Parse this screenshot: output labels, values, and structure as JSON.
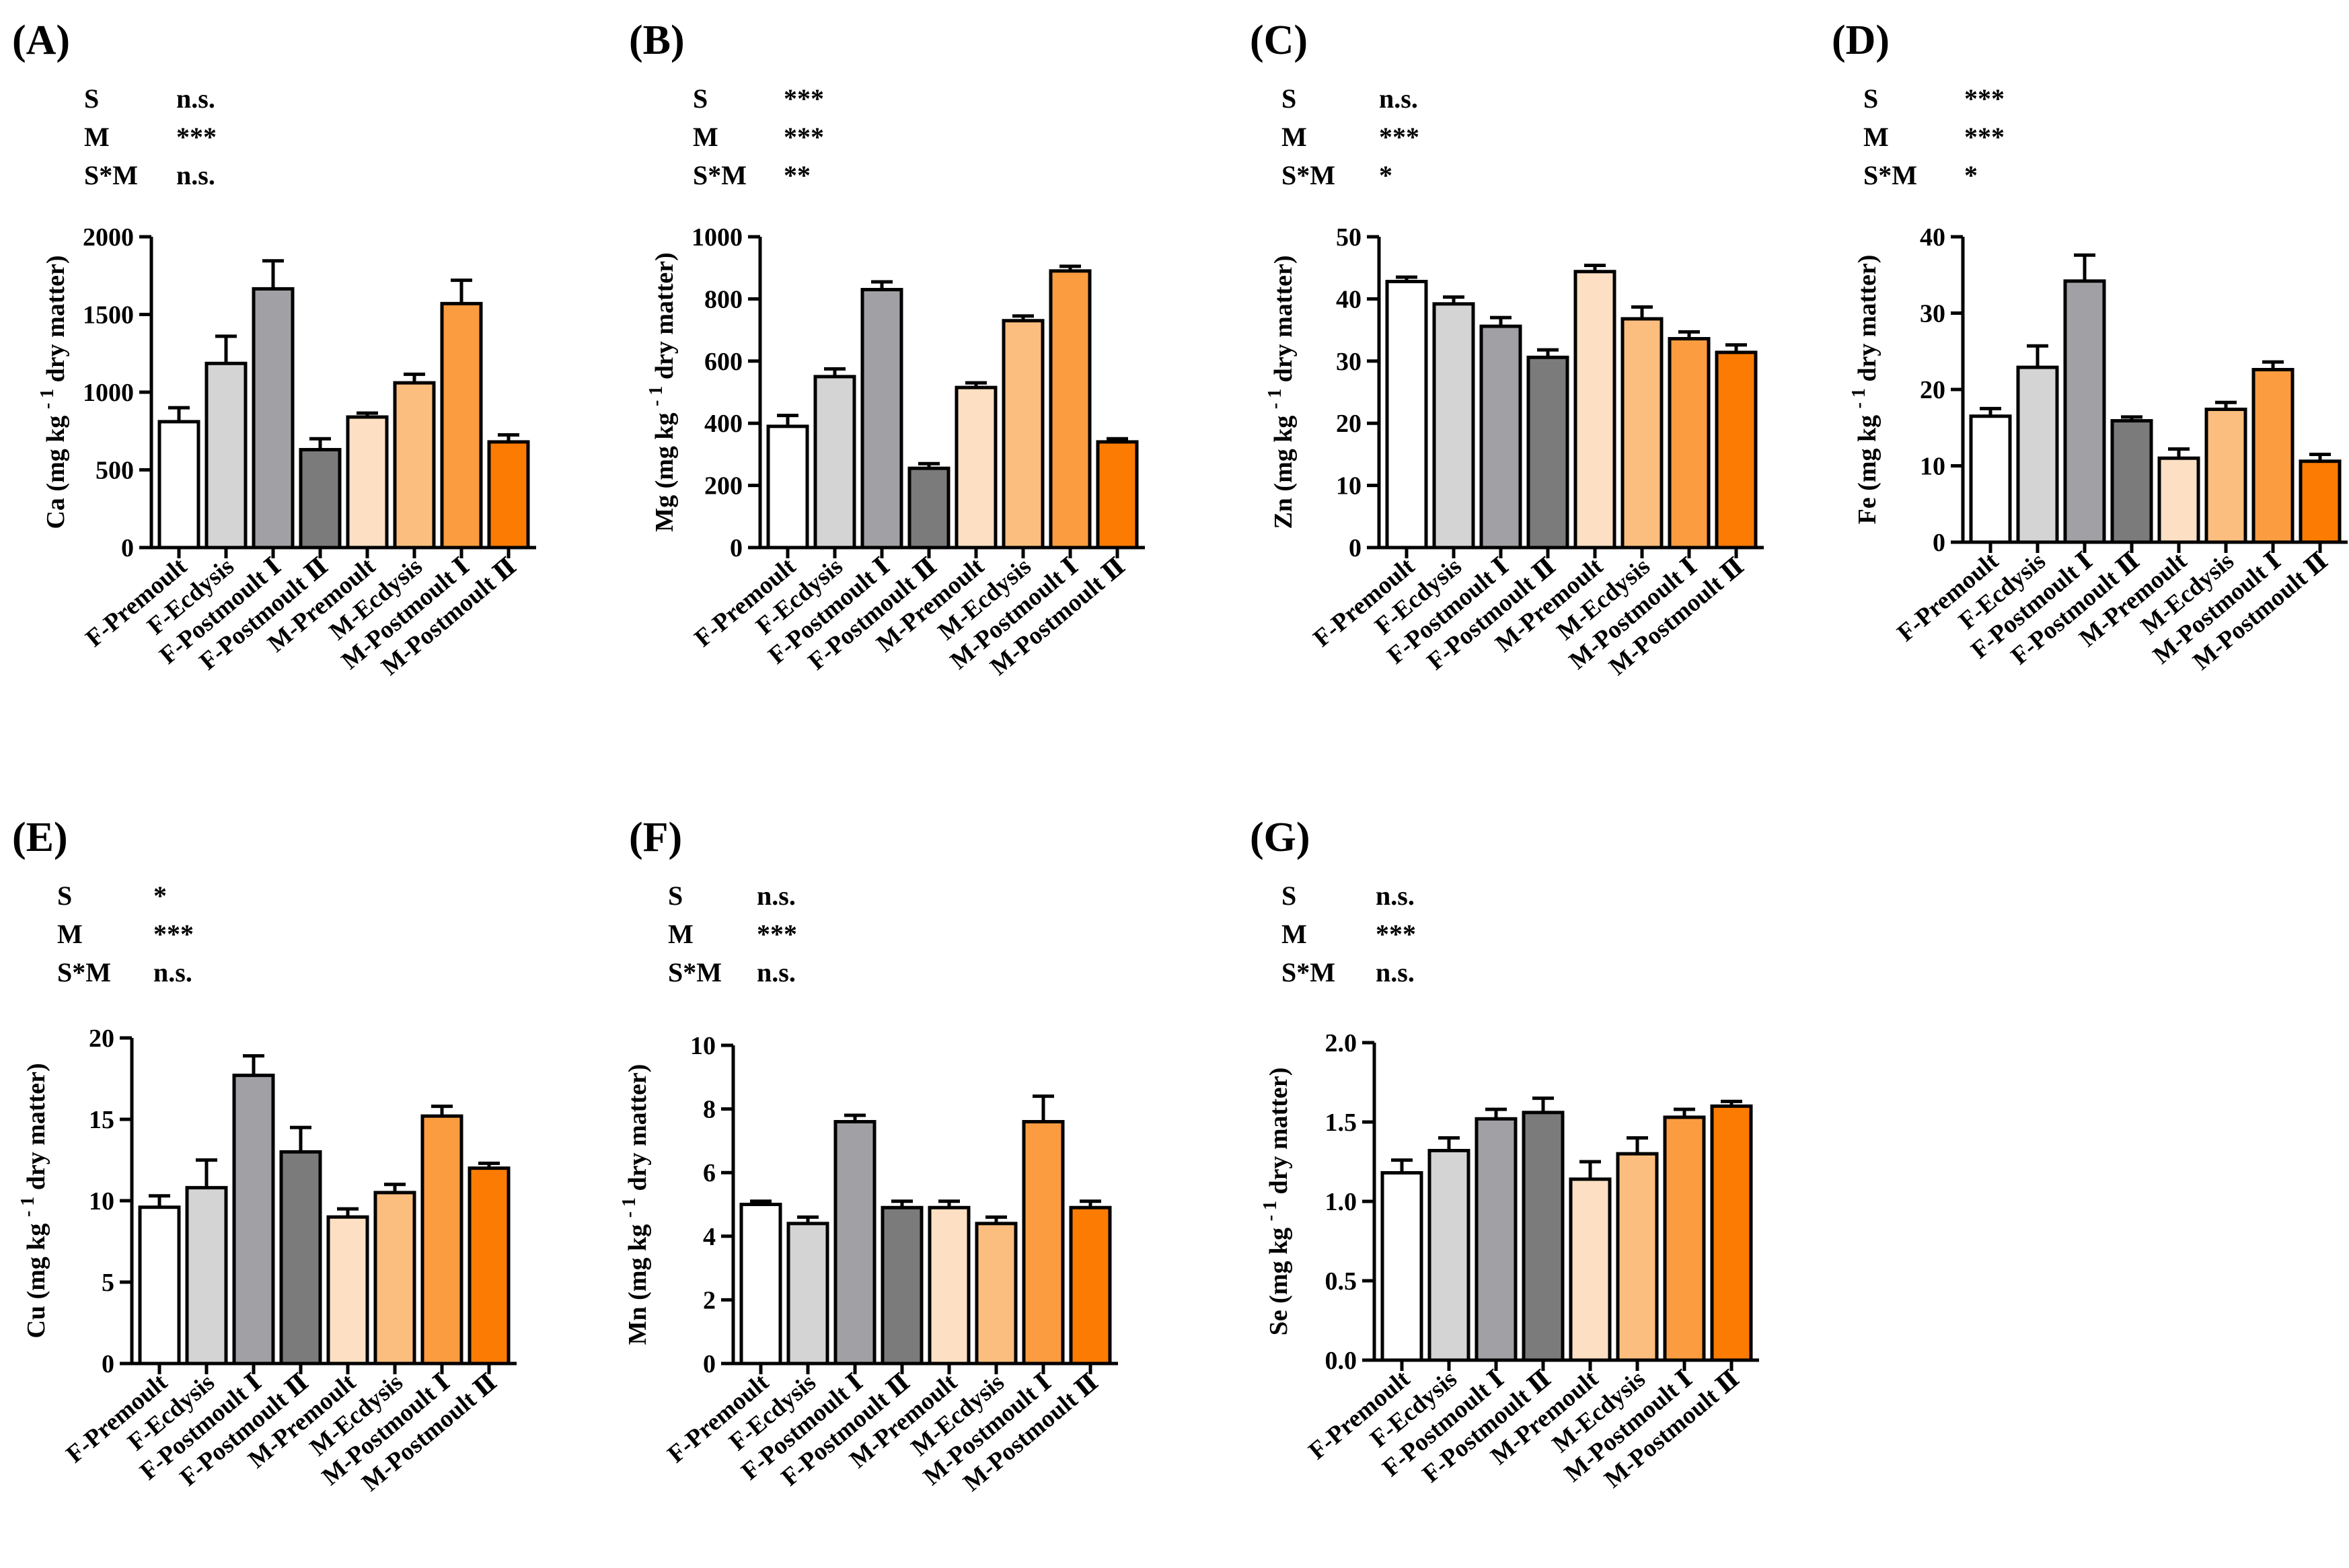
{
  "colors": [
    "#ffffff",
    "#d4d4d4",
    "#a1a1a5",
    "#7b7b7b",
    "#fde0c3",
    "#fcbe7f",
    "#fa9c3f",
    "#fb7b03"
  ],
  "categories": [
    "F-Premoult",
    "F-Ecdysis",
    "F-Postmoult Ⅰ",
    "F-Postmoult Ⅱ",
    "M-Premoult",
    "M-Ecdysis",
    "M-Postmoult Ⅰ",
    "M-Postmoult Ⅱ"
  ],
  "chart_data": [
    {
      "type": "bar",
      "panel": "(A)",
      "element": "Ca",
      "ylabel_prefix": "Ca (mg kg",
      "ylabel_sup": "- 1",
      "ylabel_suffix": " dry matter)",
      "ylim": [
        0,
        2000
      ],
      "ticks": [
        0,
        500,
        1000,
        1500,
        2000
      ],
      "tick_labels": [
        "0",
        "500",
        "1000",
        "1500",
        "2000"
      ],
      "values": [
        810,
        1185,
        1665,
        630,
        840,
        1060,
        1570,
        680
      ],
      "errors": [
        90,
        175,
        180,
        70,
        25,
        55,
        150,
        45
      ],
      "stats": [
        [
          "S",
          "n.s."
        ],
        [
          "M",
          "***"
        ],
        [
          "S*M",
          "n.s."
        ]
      ]
    },
    {
      "type": "bar",
      "panel": "(B)",
      "element": "Mg",
      "ylabel_prefix": "Mg (mg kg",
      "ylabel_sup": "- 1",
      "ylabel_suffix": " dry matter)",
      "ylim": [
        0,
        1000
      ],
      "ticks": [
        0,
        200,
        400,
        600,
        800,
        1000
      ],
      "tick_labels": [
        "0",
        "200",
        "400",
        "600",
        "800",
        "1000"
      ],
      "values": [
        390,
        550,
        830,
        255,
        515,
        730,
        890,
        340
      ],
      "errors": [
        35,
        25,
        25,
        15,
        15,
        15,
        15,
        10
      ],
      "stats": [
        [
          "S",
          "***"
        ],
        [
          "M",
          "***"
        ],
        [
          "S*M",
          "**"
        ]
      ]
    },
    {
      "type": "bar",
      "panel": "(C)",
      "element": "Zn",
      "ylabel_prefix": "Zn (mg kg",
      "ylabel_sup": "- 1",
      "ylabel_suffix": " dry matter)",
      "ylim": [
        0,
        50
      ],
      "ticks": [
        0,
        10,
        20,
        30,
        40,
        50
      ],
      "tick_labels": [
        "0",
        "10",
        "20",
        "30",
        "40",
        "50"
      ],
      "values": [
        42.8,
        39.2,
        35.6,
        30.6,
        44.4,
        36.8,
        33.6,
        31.4
      ],
      "errors": [
        0.7,
        1.1,
        1.4,
        1.2,
        1.0,
        1.9,
        1.1,
        1.2
      ],
      "stats": [
        [
          "S",
          "n.s."
        ],
        [
          "M",
          "***"
        ],
        [
          "S*M",
          "*"
        ]
      ]
    },
    {
      "type": "bar",
      "panel": "(D)",
      "element": "Fe",
      "ylabel_prefix": "Fe (mg kg",
      "ylabel_sup": "- 1",
      "ylabel_suffix": " dry matter)",
      "ylim": [
        0,
        40
      ],
      "ticks": [
        0,
        10,
        20,
        30,
        40
      ],
      "tick_labels": [
        "0",
        "10",
        "20",
        "30",
        "40"
      ],
      "values": [
        16.5,
        22.9,
        34.2,
        15.9,
        11.0,
        17.4,
        22.6,
        10.6
      ],
      "errors": [
        1.0,
        2.8,
        3.4,
        0.5,
        1.2,
        0.9,
        1.0,
        0.9
      ],
      "stats": [
        [
          "S",
          "***"
        ],
        [
          "M",
          "***"
        ],
        [
          "S*M",
          "*"
        ]
      ]
    },
    {
      "type": "bar",
      "panel": "(E)",
      "element": "Cu",
      "ylabel_prefix": "Cu (mg kg",
      "ylabel_sup": "- 1",
      "ylabel_suffix": " dry matter)",
      "ylim": [
        0,
        20
      ],
      "ticks": [
        0,
        5,
        10,
        15,
        20
      ],
      "tick_labels": [
        "0",
        "5",
        "10",
        "15",
        "20"
      ],
      "values": [
        9.6,
        10.8,
        17.7,
        13.0,
        9.0,
        10.5,
        15.2,
        12.0
      ],
      "errors": [
        0.7,
        1.7,
        1.2,
        1.5,
        0.5,
        0.5,
        0.6,
        0.3
      ],
      "stats": [
        [
          "S",
          "*"
        ],
        [
          "M",
          "***"
        ],
        [
          "S*M",
          "n.s."
        ]
      ]
    },
    {
      "type": "bar",
      "panel": "(F)",
      "element": "Mn",
      "ylabel_prefix": "Mn (mg kg",
      "ylabel_sup": "- 1",
      "ylabel_suffix": " dry matter)",
      "ylim": [
        0,
        10
      ],
      "ticks": [
        0,
        2,
        4,
        6,
        8,
        10
      ],
      "tick_labels": [
        "0",
        "2",
        "4",
        "6",
        "8",
        "10"
      ],
      "values": [
        5.0,
        4.4,
        7.6,
        4.9,
        4.9,
        4.4,
        7.6,
        4.9
      ],
      "errors": [
        0.1,
        0.2,
        0.2,
        0.2,
        0.2,
        0.2,
        0.8,
        0.2
      ],
      "stats": [
        [
          "S",
          "n.s."
        ],
        [
          "M",
          "***"
        ],
        [
          "S*M",
          "n.s."
        ]
      ]
    },
    {
      "type": "bar",
      "panel": "(G)",
      "element": "Se",
      "ylabel_prefix": "Se (mg kg",
      "ylabel_sup": "- 1",
      "ylabel_suffix": " dry matter)",
      "ylim": [
        0,
        2.0
      ],
      "ticks": [
        0,
        0.5,
        1.0,
        1.5,
        2.0
      ],
      "tick_labels": [
        "0.0",
        "0.5",
        "1.0",
        "1.5",
        "2.0"
      ],
      "values": [
        1.18,
        1.32,
        1.52,
        1.56,
        1.14,
        1.3,
        1.53,
        1.6
      ],
      "errors": [
        0.08,
        0.08,
        0.06,
        0.09,
        0.11,
        0.1,
        0.05,
        0.03
      ],
      "stats": [
        [
          "S",
          "n.s."
        ],
        [
          "M",
          "***"
        ],
        [
          "S*M",
          "n.s."
        ]
      ]
    }
  ]
}
